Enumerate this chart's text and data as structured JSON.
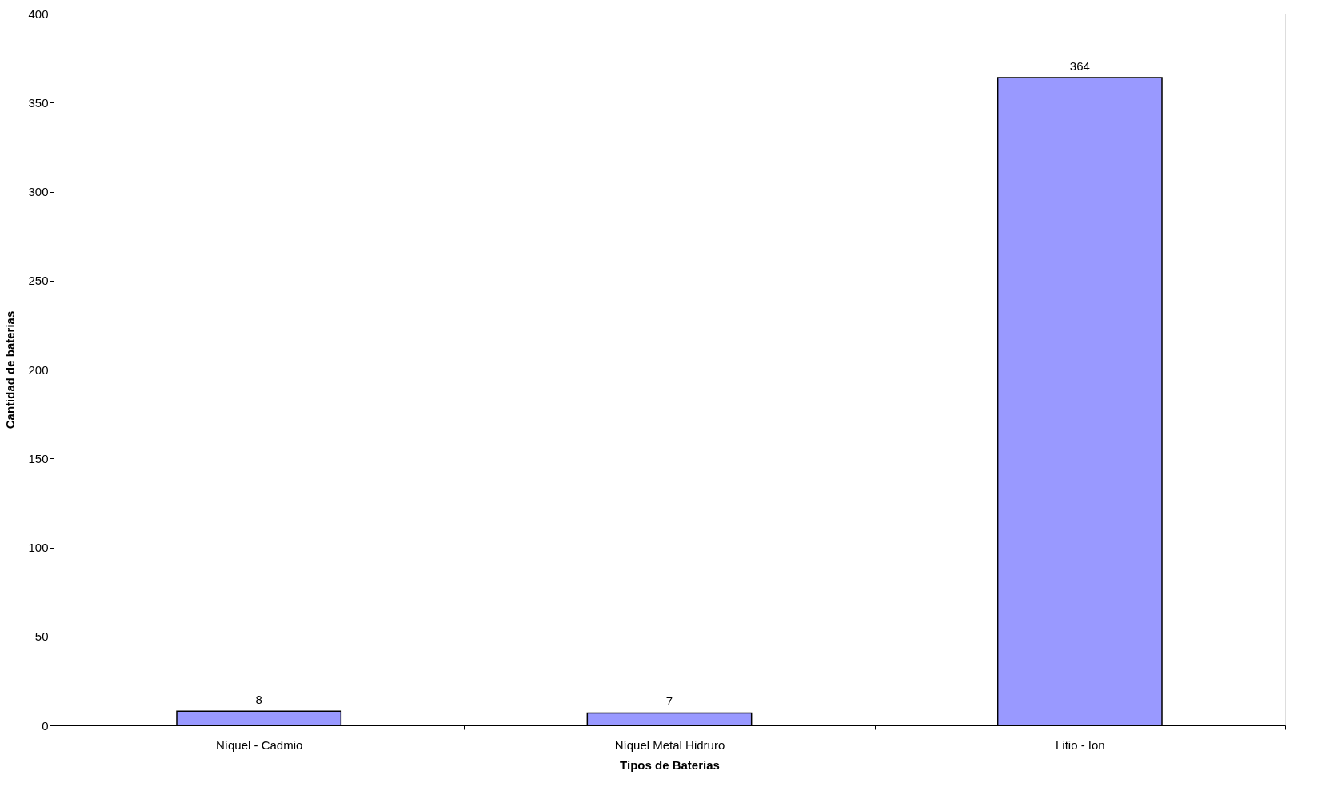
{
  "chart_data": {
    "type": "bar",
    "xlabel": "Tipos de Baterias",
    "ylabel": "Cantidad de baterias",
    "categories": [
      "Níquel - Cadmio",
      "Níquel Metal Hidruro",
      "Litio - Ion"
    ],
    "values": [
      8,
      7,
      364
    ],
    "color": "#9999ff",
    "ylim": [
      0,
      400
    ],
    "yticks": [
      0,
      50,
      100,
      150,
      200,
      250,
      300,
      350,
      400
    ],
    "grid": false,
    "data_labels": true
  }
}
